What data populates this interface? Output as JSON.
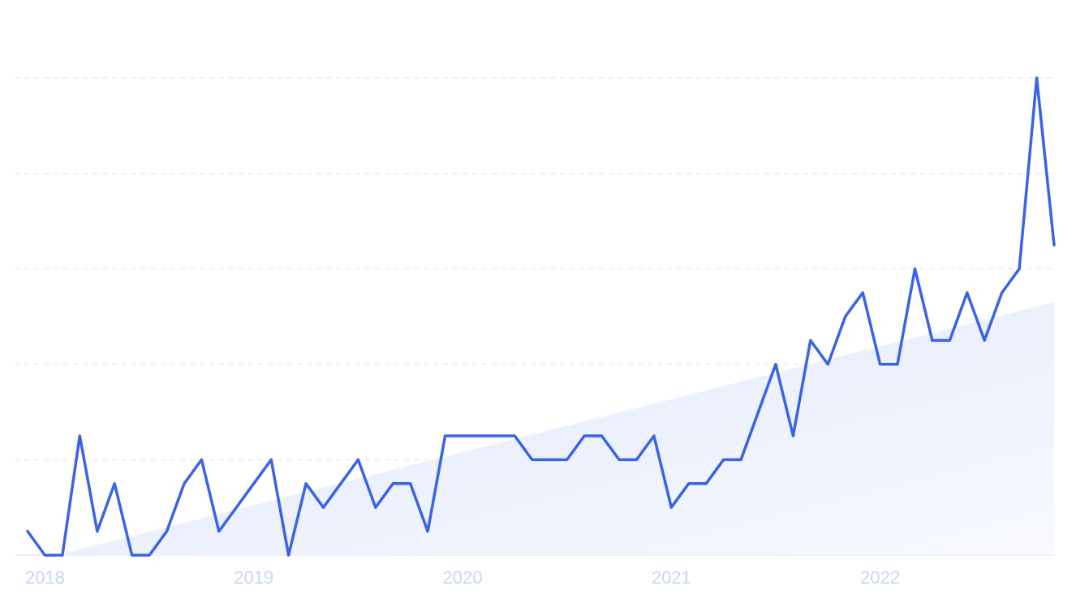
{
  "chart_data": {
    "type": "line",
    "title": "",
    "xlabel": "",
    "ylabel": "",
    "x_tick_labels": [
      "2018",
      "2019",
      "2020",
      "2021",
      "2022"
    ],
    "x_start": "2017-12",
    "x_interval": "month",
    "ylim": [
      0,
      100
    ],
    "y_gridlines": [
      0,
      20,
      40,
      60,
      80,
      100
    ],
    "grid": true,
    "legend": "none",
    "series": [
      {
        "values": [
          5,
          0,
          0,
          25,
          5,
          15,
          0,
          0,
          5,
          15,
          20,
          5,
          10,
          15,
          20,
          0,
          15,
          10,
          15,
          20,
          10,
          15,
          15,
          5,
          25,
          25,
          25,
          25,
          25,
          20,
          20,
          20,
          25,
          25,
          20,
          20,
          25,
          10,
          15,
          15,
          20,
          20,
          30,
          40,
          25,
          45,
          40,
          50,
          55,
          40,
          40,
          60,
          45,
          45,
          55,
          45,
          55,
          60,
          100,
          65
        ],
        "color": "#3a63e6"
      }
    ],
    "trend": {
      "start": 0,
      "end": 53,
      "fill_color": "#e9effc"
    },
    "colors": {
      "line": "#3a63e6",
      "grid": "#e3e7ee",
      "tick_text": "#c9d6f5"
    }
  }
}
